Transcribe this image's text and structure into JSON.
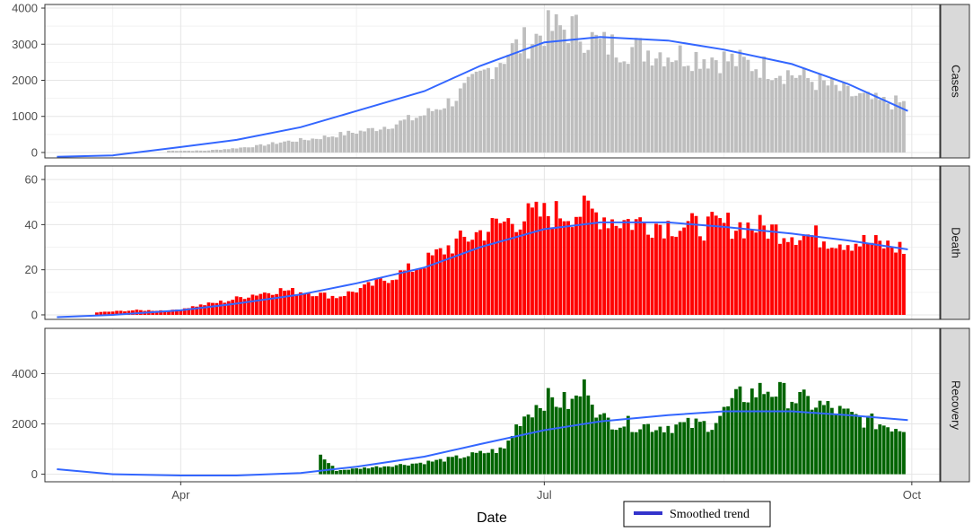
{
  "chart_data": {
    "type": "bar",
    "xlabel": "Date",
    "x_ticks": [
      "Apr",
      "Jul",
      "Oct"
    ],
    "grid": true,
    "legend": {
      "label": "Smoothed trend",
      "position": "bottom-right"
    },
    "date_range": [
      "2020-03-01",
      "2020-09-30"
    ],
    "panels": [
      {
        "name": "Cases",
        "color": "#bebebe",
        "ylim": [
          -150,
          4100
        ],
        "yticks": [
          0,
          1000,
          2000,
          3000,
          4000
        ],
        "points": [
          [
            "2020-03-28",
            50
          ],
          [
            "2020-04-07",
            50
          ],
          [
            "2020-04-13",
            100
          ],
          [
            "2020-04-20",
            180
          ],
          [
            "2020-04-27",
            300
          ],
          [
            "2020-05-04",
            380
          ],
          [
            "2020-05-11",
            500
          ],
          [
            "2020-05-18",
            620
          ],
          [
            "2020-05-25",
            800
          ],
          [
            "2020-06-01",
            1050
          ],
          [
            "2020-06-08",
            1450
          ],
          [
            "2020-06-15",
            2100
          ],
          [
            "2020-06-22",
            2800
          ],
          [
            "2020-06-29",
            3200
          ],
          [
            "2020-07-01",
            3400
          ],
          [
            "2020-07-08",
            3450
          ],
          [
            "2020-07-15",
            3000
          ],
          [
            "2020-07-22",
            2900
          ],
          [
            "2020-07-29",
            2800
          ],
          [
            "2020-08-05",
            2700
          ],
          [
            "2020-08-12",
            2650
          ],
          [
            "2020-08-19",
            2500
          ],
          [
            "2020-08-26",
            2350
          ],
          [
            "2020-09-02",
            2150
          ],
          [
            "2020-09-09",
            1900
          ],
          [
            "2020-09-16",
            1600
          ],
          [
            "2020-09-23",
            1400
          ],
          [
            "2020-09-30",
            1350
          ]
        ],
        "trend": [
          [
            "2020-03-01",
            -120
          ],
          [
            "2020-03-15",
            -80
          ],
          [
            "2020-04-01",
            150
          ],
          [
            "2020-04-15",
            350
          ],
          [
            "2020-05-01",
            700
          ],
          [
            "2020-05-15",
            1150
          ],
          [
            "2020-06-01",
            1700
          ],
          [
            "2020-06-15",
            2400
          ],
          [
            "2020-07-01",
            3050
          ],
          [
            "2020-07-15",
            3200
          ],
          [
            "2020-08-01",
            3100
          ],
          [
            "2020-08-15",
            2850
          ],
          [
            "2020-09-01",
            2450
          ],
          [
            "2020-09-15",
            1900
          ],
          [
            "2020-09-30",
            1150
          ]
        ]
      },
      {
        "name": "Death",
        "color": "#ff0000",
        "ylim": [
          -2,
          66
        ],
        "yticks": [
          0,
          20,
          40,
          60
        ],
        "points": [
          [
            "2020-03-10",
            1
          ],
          [
            "2020-03-20",
            2
          ],
          [
            "2020-03-30",
            2
          ],
          [
            "2020-04-05",
            4
          ],
          [
            "2020-04-12",
            6
          ],
          [
            "2020-04-19",
            9
          ],
          [
            "2020-04-26",
            11
          ],
          [
            "2020-05-03",
            10
          ],
          [
            "2020-05-10",
            8
          ],
          [
            "2020-05-17",
            12
          ],
          [
            "2020-05-24",
            17
          ],
          [
            "2020-05-31",
            22
          ],
          [
            "2020-06-07",
            30
          ],
          [
            "2020-06-14",
            36
          ],
          [
            "2020-06-21",
            41
          ],
          [
            "2020-06-28",
            44
          ],
          [
            "2020-07-05",
            45
          ],
          [
            "2020-07-12",
            46
          ],
          [
            "2020-07-19",
            42
          ],
          [
            "2020-07-26",
            41
          ],
          [
            "2020-08-02",
            40
          ],
          [
            "2020-08-09",
            39
          ],
          [
            "2020-08-16",
            40
          ],
          [
            "2020-08-23",
            39
          ],
          [
            "2020-08-30",
            37
          ],
          [
            "2020-09-06",
            35
          ],
          [
            "2020-09-13",
            33
          ],
          [
            "2020-09-20",
            32
          ],
          [
            "2020-09-27",
            30
          ],
          [
            "2020-09-30",
            29
          ]
        ],
        "trend": [
          [
            "2020-03-01",
            -1
          ],
          [
            "2020-03-15",
            0
          ],
          [
            "2020-04-01",
            2
          ],
          [
            "2020-04-15",
            5
          ],
          [
            "2020-05-01",
            9
          ],
          [
            "2020-05-15",
            14
          ],
          [
            "2020-06-01",
            21
          ],
          [
            "2020-06-15",
            30
          ],
          [
            "2020-07-01",
            38
          ],
          [
            "2020-07-15",
            41
          ],
          [
            "2020-08-01",
            41
          ],
          [
            "2020-08-15",
            39
          ],
          [
            "2020-09-01",
            36
          ],
          [
            "2020-09-15",
            33
          ],
          [
            "2020-09-30",
            29
          ]
        ]
      },
      {
        "name": "Recovery",
        "color": "#006400",
        "ylim": [
          -300,
          5800
        ],
        "yticks": [
          0,
          2000,
          4000
        ],
        "points": [
          [
            "2020-05-05",
            900
          ],
          [
            "2020-05-10",
            150
          ],
          [
            "2020-05-17",
            250
          ],
          [
            "2020-05-24",
            350
          ],
          [
            "2020-05-31",
            450
          ],
          [
            "2020-06-07",
            600
          ],
          [
            "2020-06-14",
            800
          ],
          [
            "2020-06-21",
            1000
          ],
          [
            "2020-06-25",
            2200
          ],
          [
            "2020-07-01",
            3000
          ],
          [
            "2020-07-08",
            2800
          ],
          [
            "2020-07-12",
            3600
          ],
          [
            "2020-07-15",
            2200
          ],
          [
            "2020-07-22",
            2000
          ],
          [
            "2020-07-29",
            1900
          ],
          [
            "2020-08-05",
            1950
          ],
          [
            "2020-08-12",
            2000
          ],
          [
            "2020-08-19",
            3100
          ],
          [
            "2020-08-26",
            3400
          ],
          [
            "2020-09-02",
            3000
          ],
          [
            "2020-09-09",
            2700
          ],
          [
            "2020-09-16",
            2300
          ],
          [
            "2020-09-23",
            2000
          ],
          [
            "2020-09-30",
            1800
          ]
        ],
        "trend": [
          [
            "2020-03-01",
            200
          ],
          [
            "2020-03-15",
            0
          ],
          [
            "2020-04-01",
            -50
          ],
          [
            "2020-04-15",
            -50
          ],
          [
            "2020-05-01",
            50
          ],
          [
            "2020-05-15",
            300
          ],
          [
            "2020-06-01",
            700
          ],
          [
            "2020-06-15",
            1200
          ],
          [
            "2020-07-01",
            1750
          ],
          [
            "2020-07-15",
            2100
          ],
          [
            "2020-08-01",
            2350
          ],
          [
            "2020-08-15",
            2500
          ],
          [
            "2020-09-01",
            2500
          ],
          [
            "2020-09-15",
            2350
          ],
          [
            "2020-09-30",
            2150
          ]
        ]
      }
    ]
  }
}
